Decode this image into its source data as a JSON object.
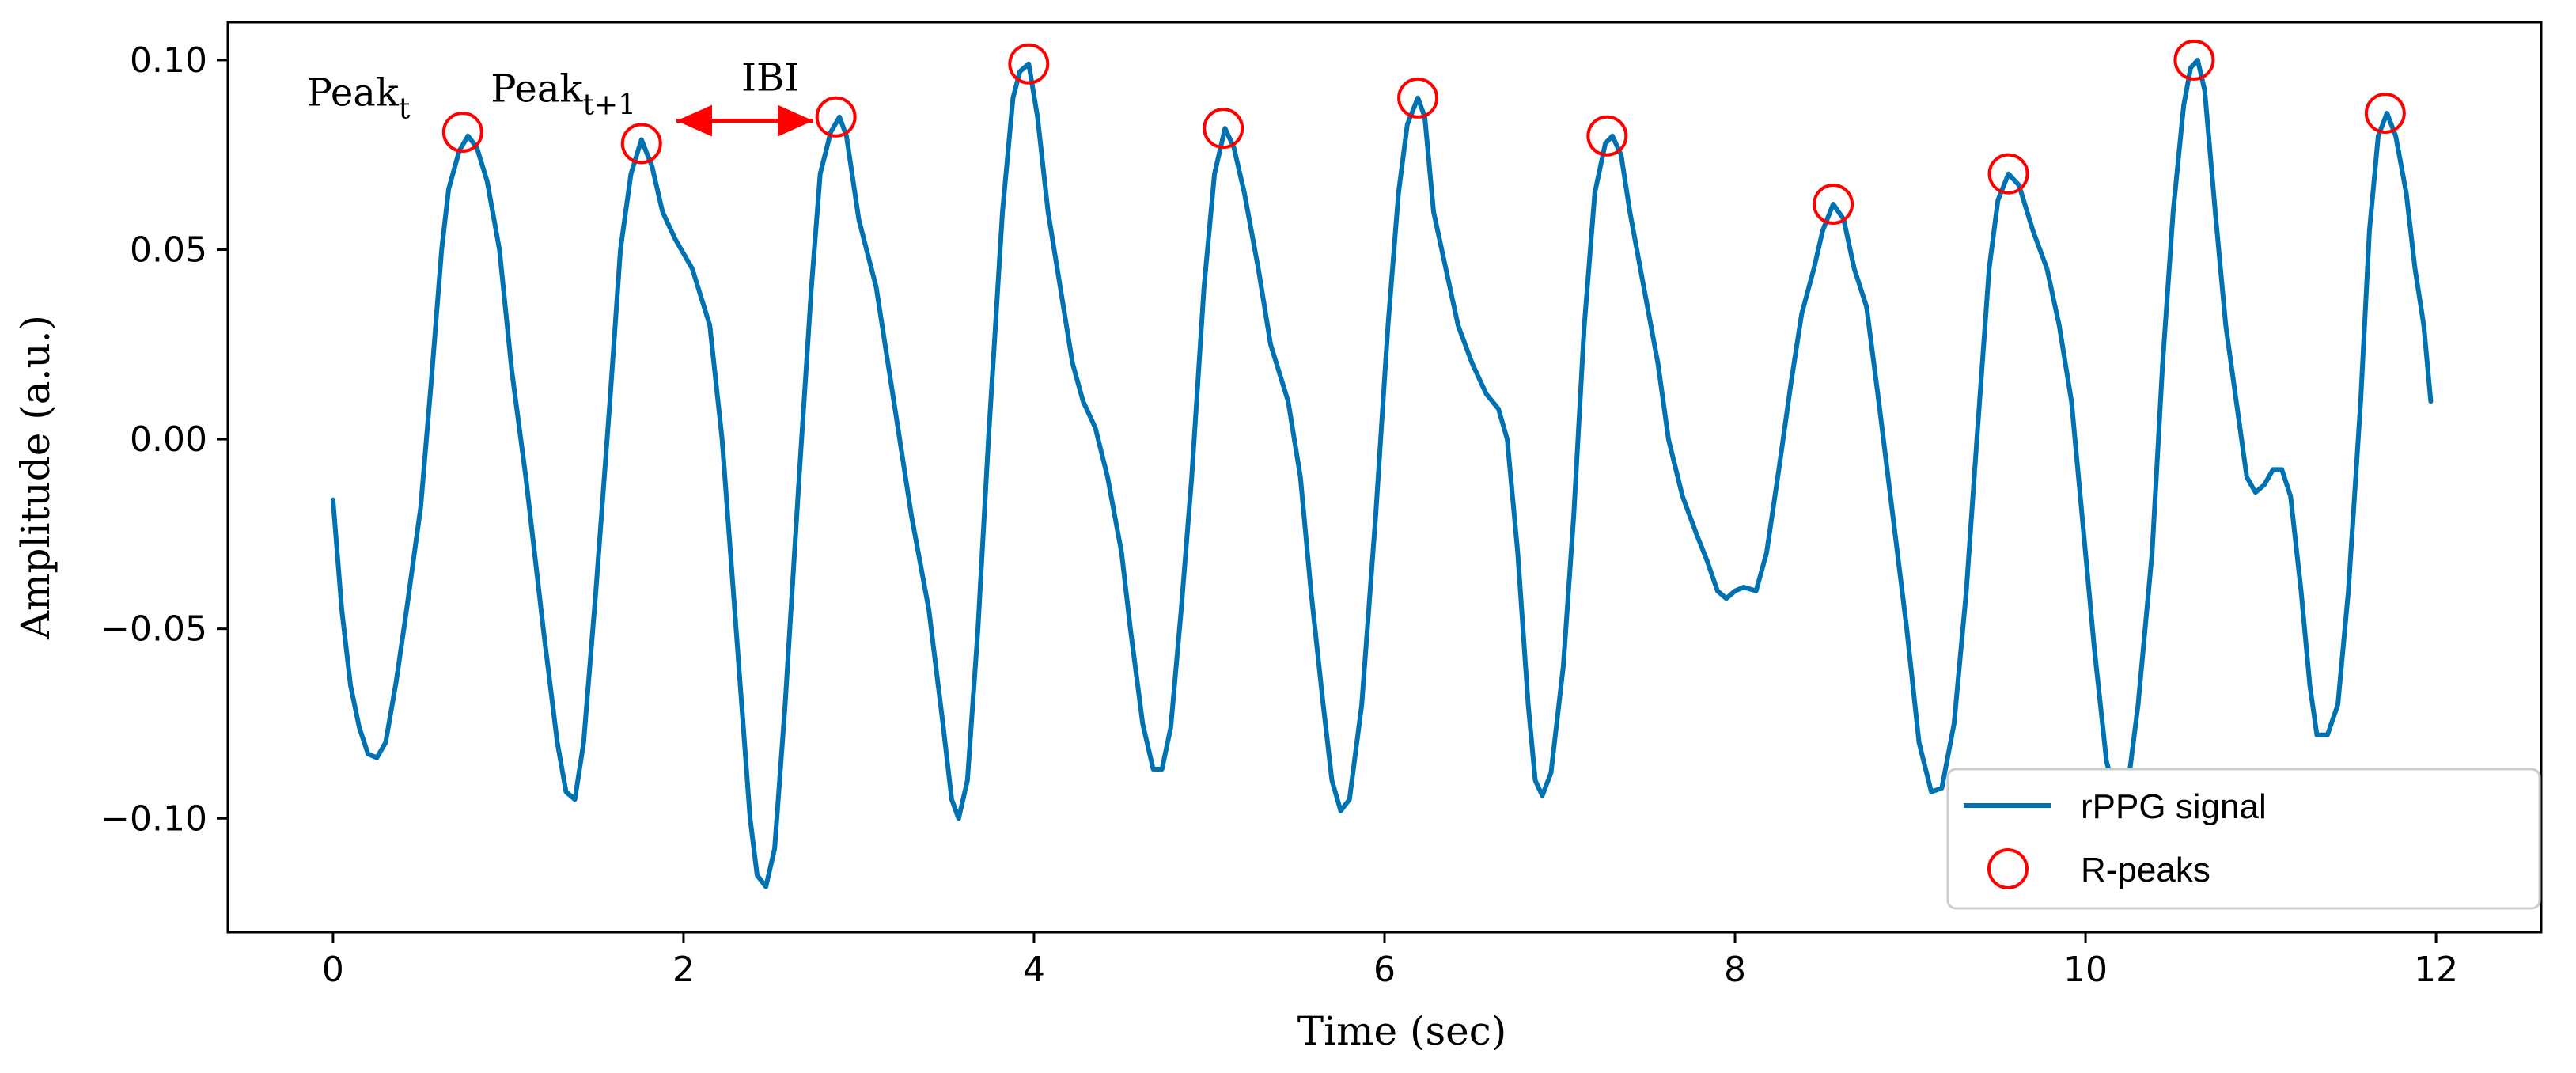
{
  "chart_data": {
    "type": "line",
    "title": "",
    "xlabel": "Time (sec)",
    "ylabel": "Amplitude (a.u.)",
    "xlim": [
      -0.6,
      12.6
    ],
    "ylim": [
      -0.13,
      0.11
    ],
    "xticks": [
      0,
      2,
      4,
      6,
      8,
      10,
      12
    ],
    "xtick_labels": [
      "0",
      "2",
      "4",
      "6",
      "8",
      "10",
      "12"
    ],
    "yticks": [
      -0.1,
      -0.05,
      0.0,
      0.05,
      0.1
    ],
    "ytick_labels": [
      "−0.10",
      "−0.05",
      "0.00",
      "0.05",
      "0.10"
    ],
    "grid": false,
    "legend_position": "bottom-right",
    "series": [
      {
        "name": "rPPG signal",
        "kind": "line",
        "color": "#0072b2",
        "points": [
          [
            0.0,
            -0.016
          ],
          [
            0.05,
            -0.045
          ],
          [
            0.1,
            -0.065
          ],
          [
            0.15,
            -0.076
          ],
          [
            0.2,
            -0.083
          ],
          [
            0.25,
            -0.084
          ],
          [
            0.3,
            -0.08
          ],
          [
            0.36,
            -0.064
          ],
          [
            0.42,
            -0.045
          ],
          [
            0.5,
            -0.018
          ],
          [
            0.56,
            0.015
          ],
          [
            0.62,
            0.05
          ],
          [
            0.66,
            0.066
          ],
          [
            0.72,
            0.076
          ],
          [
            0.77,
            0.08
          ],
          [
            0.82,
            0.077
          ],
          [
            0.88,
            0.068
          ],
          [
            0.95,
            0.05
          ],
          [
            1.02,
            0.018
          ],
          [
            1.1,
            -0.01
          ],
          [
            1.2,
            -0.05
          ],
          [
            1.28,
            -0.08
          ],
          [
            1.33,
            -0.093
          ],
          [
            1.38,
            -0.095
          ],
          [
            1.43,
            -0.08
          ],
          [
            1.5,
            -0.04
          ],
          [
            1.58,
            0.01
          ],
          [
            1.64,
            0.05
          ],
          [
            1.7,
            0.07
          ],
          [
            1.76,
            0.079
          ],
          [
            1.82,
            0.072
          ],
          [
            1.88,
            0.06
          ],
          [
            1.95,
            0.053
          ],
          [
            2.05,
            0.045
          ],
          [
            2.15,
            0.03
          ],
          [
            2.22,
            0.0
          ],
          [
            2.3,
            -0.05
          ],
          [
            2.38,
            -0.1
          ],
          [
            2.42,
            -0.115
          ],
          [
            2.47,
            -0.118
          ],
          [
            2.52,
            -0.108
          ],
          [
            2.58,
            -0.07
          ],
          [
            2.66,
            -0.01
          ],
          [
            2.73,
            0.04
          ],
          [
            2.78,
            0.07
          ],
          [
            2.84,
            0.081
          ],
          [
            2.89,
            0.085
          ],
          [
            2.93,
            0.08
          ],
          [
            3.0,
            0.058
          ],
          [
            3.1,
            0.04
          ],
          [
            3.2,
            0.01
          ],
          [
            3.3,
            -0.02
          ],
          [
            3.4,
            -0.045
          ],
          [
            3.48,
            -0.075
          ],
          [
            3.53,
            -0.095
          ],
          [
            3.57,
            -0.1
          ],
          [
            3.62,
            -0.09
          ],
          [
            3.68,
            -0.05
          ],
          [
            3.74,
            0.0
          ],
          [
            3.82,
            0.06
          ],
          [
            3.88,
            0.09
          ],
          [
            3.92,
            0.097
          ],
          [
            3.97,
            0.099
          ],
          [
            4.02,
            0.085
          ],
          [
            4.08,
            0.06
          ],
          [
            4.15,
            0.04
          ],
          [
            4.22,
            0.02
          ],
          [
            4.28,
            0.01
          ],
          [
            4.35,
            0.003
          ],
          [
            4.42,
            -0.01
          ],
          [
            4.5,
            -0.03
          ],
          [
            4.55,
            -0.05
          ],
          [
            4.62,
            -0.075
          ],
          [
            4.68,
            -0.087
          ],
          [
            4.73,
            -0.087
          ],
          [
            4.78,
            -0.076
          ],
          [
            4.84,
            -0.045
          ],
          [
            4.9,
            -0.01
          ],
          [
            4.97,
            0.04
          ],
          [
            5.03,
            0.07
          ],
          [
            5.09,
            0.082
          ],
          [
            5.14,
            0.077
          ],
          [
            5.2,
            0.065
          ],
          [
            5.28,
            0.045
          ],
          [
            5.35,
            0.025
          ],
          [
            5.45,
            0.01
          ],
          [
            5.52,
            -0.01
          ],
          [
            5.58,
            -0.04
          ],
          [
            5.65,
            -0.07
          ],
          [
            5.7,
            -0.09
          ],
          [
            5.75,
            -0.098
          ],
          [
            5.8,
            -0.095
          ],
          [
            5.87,
            -0.07
          ],
          [
            5.95,
            -0.02
          ],
          [
            6.02,
            0.03
          ],
          [
            6.08,
            0.065
          ],
          [
            6.13,
            0.083
          ],
          [
            6.19,
            0.09
          ],
          [
            6.23,
            0.085
          ],
          [
            6.28,
            0.06
          ],
          [
            6.35,
            0.045
          ],
          [
            6.42,
            0.03
          ],
          [
            6.5,
            0.02
          ],
          [
            6.58,
            0.012
          ],
          [
            6.65,
            0.008
          ],
          [
            6.7,
            0.0
          ],
          [
            6.76,
            -0.03
          ],
          [
            6.82,
            -0.07
          ],
          [
            6.86,
            -0.09
          ],
          [
            6.9,
            -0.094
          ],
          [
            6.95,
            -0.088
          ],
          [
            7.02,
            -0.06
          ],
          [
            7.08,
            -0.02
          ],
          [
            7.14,
            0.03
          ],
          [
            7.2,
            0.065
          ],
          [
            7.26,
            0.078
          ],
          [
            7.3,
            0.08
          ],
          [
            7.35,
            0.075
          ],
          [
            7.4,
            0.06
          ],
          [
            7.48,
            0.04
          ],
          [
            7.56,
            0.02
          ],
          [
            7.62,
            0.0
          ],
          [
            7.7,
            -0.015
          ],
          [
            7.78,
            -0.025
          ],
          [
            7.84,
            -0.032
          ],
          [
            7.9,
            -0.04
          ],
          [
            7.95,
            -0.042
          ],
          [
            8.0,
            -0.04
          ],
          [
            8.05,
            -0.039
          ],
          [
            8.12,
            -0.04
          ],
          [
            8.18,
            -0.03
          ],
          [
            8.25,
            -0.008
          ],
          [
            8.32,
            0.015
          ],
          [
            8.38,
            0.033
          ],
          [
            8.45,
            0.045
          ],
          [
            8.5,
            0.055
          ],
          [
            8.56,
            0.062
          ],
          [
            8.62,
            0.058
          ],
          [
            8.68,
            0.045
          ],
          [
            8.75,
            0.035
          ],
          [
            8.82,
            0.01
          ],
          [
            8.9,
            -0.02
          ],
          [
            8.98,
            -0.05
          ],
          [
            9.05,
            -0.08
          ],
          [
            9.12,
            -0.093
          ],
          [
            9.18,
            -0.092
          ],
          [
            9.25,
            -0.075
          ],
          [
            9.32,
            -0.04
          ],
          [
            9.38,
            0.0
          ],
          [
            9.45,
            0.045
          ],
          [
            9.5,
            0.063
          ],
          [
            9.56,
            0.07
          ],
          [
            9.62,
            0.067
          ],
          [
            9.7,
            0.055
          ],
          [
            9.78,
            0.045
          ],
          [
            9.85,
            0.03
          ],
          [
            9.92,
            0.01
          ],
          [
            9.98,
            -0.02
          ],
          [
            10.05,
            -0.055
          ],
          [
            10.12,
            -0.085
          ],
          [
            10.18,
            -0.095
          ],
          [
            10.24,
            -0.092
          ],
          [
            10.3,
            -0.07
          ],
          [
            10.38,
            -0.03
          ],
          [
            10.44,
            0.02
          ],
          [
            10.5,
            0.06
          ],
          [
            10.56,
            0.088
          ],
          [
            10.6,
            0.098
          ],
          [
            10.64,
            0.1
          ],
          [
            10.68,
            0.092
          ],
          [
            10.74,
            0.06
          ],
          [
            10.8,
            0.03
          ],
          [
            10.86,
            0.01
          ],
          [
            10.92,
            -0.01
          ],
          [
            10.97,
            -0.014
          ],
          [
            11.02,
            -0.012
          ],
          [
            11.07,
            -0.008
          ],
          [
            11.12,
            -0.008
          ],
          [
            11.17,
            -0.015
          ],
          [
            11.23,
            -0.04
          ],
          [
            11.28,
            -0.065
          ],
          [
            11.32,
            -0.078
          ],
          [
            11.38,
            -0.078
          ],
          [
            11.44,
            -0.07
          ],
          [
            11.5,
            -0.04
          ],
          [
            11.57,
            0.01
          ],
          [
            11.62,
            0.055
          ],
          [
            11.67,
            0.08
          ],
          [
            11.72,
            0.086
          ],
          [
            11.77,
            0.08
          ],
          [
            11.83,
            0.065
          ],
          [
            11.88,
            0.045
          ],
          [
            11.93,
            0.03
          ],
          [
            11.97,
            0.01
          ]
        ]
      },
      {
        "name": "R-peaks",
        "kind": "markers",
        "marker": "open-circle",
        "color": "#ff0000",
        "points": [
          [
            0.74,
            0.081
          ],
          [
            1.76,
            0.078
          ],
          [
            2.87,
            0.085
          ],
          [
            3.97,
            0.099
          ],
          [
            5.08,
            0.082
          ],
          [
            6.19,
            0.09
          ],
          [
            7.27,
            0.08
          ],
          [
            8.56,
            0.062
          ],
          [
            9.56,
            0.07
          ],
          [
            10.62,
            0.1
          ],
          [
            11.71,
            0.086
          ]
        ]
      }
    ],
    "annotations": [
      {
        "name": "peak-t-label",
        "base": "Peak",
        "sub": "t",
        "x": -0.15,
        "y": 0.088
      },
      {
        "name": "peak-t1-label",
        "base": "Peak",
        "sub": "t+1",
        "x": 0.9,
        "y": 0.089
      },
      {
        "name": "ibi-label",
        "text": "IBI",
        "x": 2.33,
        "y": 0.092
      }
    ],
    "ibi_arrow": {
      "x_start": 1.96,
      "x_end": 2.74,
      "y": 0.084,
      "color": "#ff0000"
    },
    "legend": {
      "position": "bottom-right",
      "items": [
        "rPPG signal",
        "R-peaks"
      ]
    }
  }
}
